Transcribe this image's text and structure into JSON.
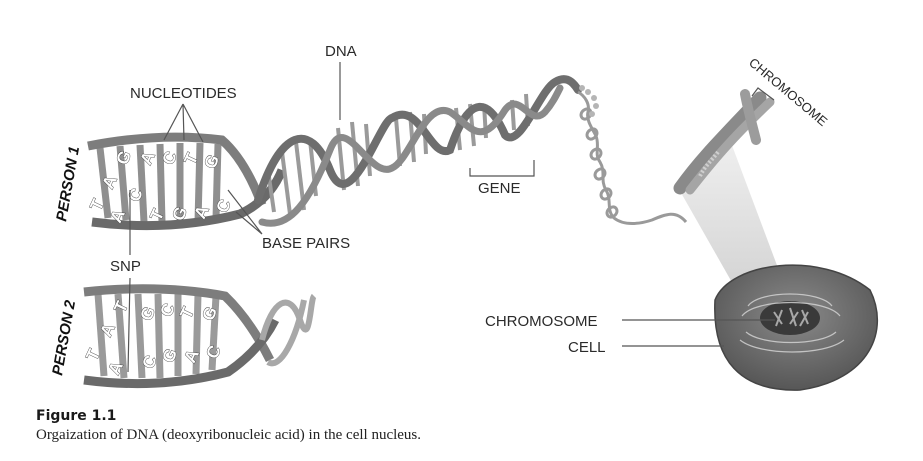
{
  "labels": {
    "dna": "DNA",
    "nucleotides": "NUCLEOTIDES",
    "gene": "GENE",
    "base_pairs": "BASE PAIRS",
    "snp": "SNP",
    "chromosome_top": "CHROMOSOME",
    "chromosome_cell": "CHROMOSOME",
    "cell": "CELL",
    "person1": "PERSON 1",
    "person2": "PERSON 2"
  },
  "person1_bases": {
    "top": [
      "T",
      "A",
      "G",
      "A",
      "C",
      "T",
      "G"
    ],
    "bottom": [
      "A",
      "C",
      "T",
      "G",
      "A",
      "C"
    ]
  },
  "person2_bases": {
    "top": [
      "T",
      "A",
      "T",
      "G",
      "C",
      "T",
      "G"
    ],
    "bottom": [
      "A",
      "C",
      "G",
      "A",
      "C"
    ]
  },
  "caption": {
    "figure_number": "Figure 1.1",
    "text": "Orgaization of DNA (deoxyribonucleic acid) in the cell nucleus."
  },
  "colors": {
    "strand": "#7d7d7d",
    "strand_dark": "#4a4a4a",
    "rung": "#9a9a9a",
    "cell": "#5c5c5c",
    "nucleus": "#3a3a3a"
  }
}
